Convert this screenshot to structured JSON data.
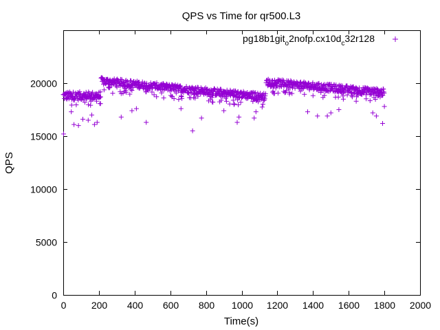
{
  "chart_data": {
    "type": "scatter",
    "title": "QPS vs Time for qr500.L3",
    "xlabel": "Time(s)",
    "ylabel": "QPS",
    "xlim": [
      0,
      2000
    ],
    "ylim": [
      0,
      25000
    ],
    "xticks": [
      0,
      200,
      400,
      600,
      800,
      1000,
      1200,
      1400,
      1600,
      1800,
      2000
    ],
    "yticks": [
      0,
      5000,
      10000,
      15000,
      20000
    ],
    "grid": false,
    "legend_position": "top-right",
    "series": [
      {
        "name": "pg18b1git_o2nofp.cx10d_c32r128",
        "legend_parts": [
          "pg18b1git",
          "o",
          "2nofp.cx10d",
          "c",
          "32r128"
        ],
        "color": "#9400d3",
        "marker": "plus",
        "segments": [
          {
            "x_start": 0,
            "x_end": 210,
            "step": 2,
            "level": 18800,
            "spread": 400
          },
          {
            "x_start": 212,
            "x_end": 1135,
            "step": 2,
            "level_start": 20200,
            "level_end": 18700,
            "spread": 350
          },
          {
            "x_start": 1137,
            "x_end": 1800,
            "step": 2,
            "level_start": 20100,
            "level_end": 19100,
            "spread": 350
          }
        ],
        "outliers": [
          {
            "x": 2,
            "y": 15200
          },
          {
            "x": 60,
            "y": 16100
          },
          {
            "x": 85,
            "y": 16000
          },
          {
            "x": 110,
            "y": 16600
          },
          {
            "x": 140,
            "y": 16500
          },
          {
            "x": 175,
            "y": 16100
          },
          {
            "x": 190,
            "y": 16300
          },
          {
            "x": 45,
            "y": 17300
          },
          {
            "x": 160,
            "y": 17000
          },
          {
            "x": 325,
            "y": 16800
          },
          {
            "x": 465,
            "y": 16300
          },
          {
            "x": 385,
            "y": 17400
          },
          {
            "x": 410,
            "y": 17600
          },
          {
            "x": 660,
            "y": 17600
          },
          {
            "x": 725,
            "y": 15500
          },
          {
            "x": 775,
            "y": 16700
          },
          {
            "x": 900,
            "y": 17400
          },
          {
            "x": 975,
            "y": 16300
          },
          {
            "x": 985,
            "y": 16800
          },
          {
            "x": 1070,
            "y": 16700
          },
          {
            "x": 1080,
            "y": 17300
          },
          {
            "x": 1370,
            "y": 17300
          },
          {
            "x": 1425,
            "y": 16900
          },
          {
            "x": 1480,
            "y": 16900
          },
          {
            "x": 1500,
            "y": 17200
          },
          {
            "x": 1545,
            "y": 17500
          },
          {
            "x": 1735,
            "y": 17200
          },
          {
            "x": 1755,
            "y": 16900
          },
          {
            "x": 1790,
            "y": 16200
          },
          {
            "x": 1800,
            "y": 17800
          }
        ]
      }
    ]
  }
}
